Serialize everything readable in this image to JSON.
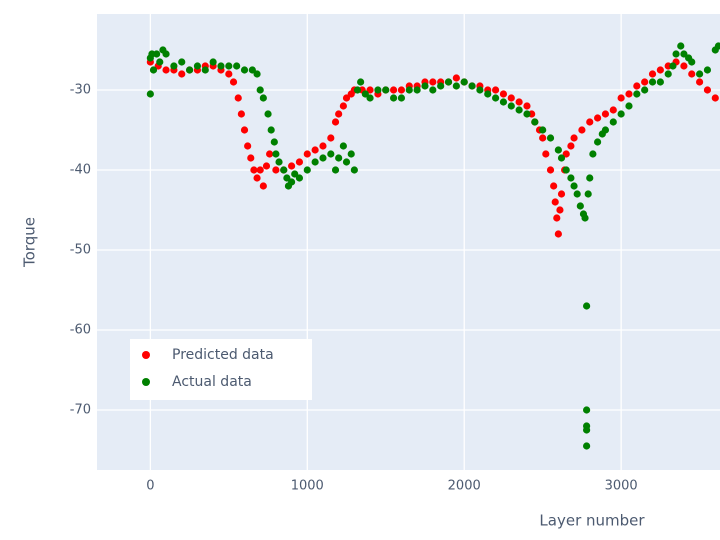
{
  "chart_data": {
    "type": "scatter",
    "xlabel": "Layer number",
    "ylabel": "Torque",
    "xlim": [
      -340,
      3630
    ],
    "ylim": [
      -77.5,
      -20.5
    ],
    "xticks": [
      0,
      1000,
      2000,
      3000
    ],
    "yticks": [
      -70,
      -60,
      -50,
      -40,
      -30
    ],
    "grid": true,
    "legend": "lower left",
    "series": [
      {
        "name": "Predicted data",
        "color": "#ff0000",
        "x": [
          0,
          50,
          100,
          150,
          200,
          250,
          300,
          350,
          400,
          450,
          500,
          530,
          560,
          580,
          600,
          620,
          640,
          660,
          680,
          700,
          720,
          740,
          760,
          800,
          850,
          900,
          950,
          1000,
          1050,
          1100,
          1150,
          1180,
          1200,
          1230,
          1250,
          1280,
          1300,
          1350,
          1400,
          1450,
          1500,
          1550,
          1600,
          1650,
          1700,
          1750,
          1800,
          1850,
          1900,
          1950,
          2000,
          2050,
          2100,
          2150,
          2200,
          2250,
          2300,
          2350,
          2400,
          2430,
          2450,
          2480,
          2500,
          2520,
          2550,
          2570,
          2580,
          2590,
          2600,
          2610,
          2620,
          2640,
          2650,
          2680,
          2700,
          2750,
          2800,
          2850,
          2900,
          2950,
          3000,
          3050,
          3100,
          3150,
          3200,
          3250,
          3300,
          3350,
          3400,
          3450,
          3500,
          3550,
          3600
        ],
        "values": [
          -26.5,
          -27,
          -27.5,
          -27.5,
          -28,
          -27.5,
          -27.5,
          -27,
          -27,
          -27.5,
          -28,
          -29,
          -31,
          -33,
          -35,
          -37,
          -38.5,
          -40,
          -41,
          -40,
          -42,
          -39.5,
          -38,
          -40,
          -40,
          -39.5,
          -39,
          -38,
          -37.5,
          -37,
          -36,
          -34,
          -33,
          -32,
          -31,
          -30.5,
          -30,
          -30,
          -30,
          -30.5,
          -30,
          -30,
          -30,
          -29.5,
          -29.5,
          -29,
          -29,
          -29,
          -29,
          -28.5,
          -29,
          -29.5,
          -29.5,
          -30,
          -30,
          -30.5,
          -31,
          -31.5,
          -32,
          -33,
          -34,
          -35,
          -36,
          -38,
          -40,
          -42,
          -44,
          -46,
          -48,
          -45,
          -43,
          -40,
          -38,
          -37,
          -36,
          -35,
          -34,
          -33.5,
          -33,
          -32.5,
          -31,
          -30.5,
          -29.5,
          -29,
          -28,
          -27.5,
          -27,
          -26.5,
          -27,
          -28,
          -29,
          -30,
          -31
        ]
      },
      {
        "name": "Actual data",
        "color": "#008000",
        "x": [
          0,
          0,
          10,
          20,
          40,
          60,
          80,
          100,
          150,
          200,
          250,
          300,
          350,
          400,
          450,
          500,
          550,
          600,
          650,
          680,
          700,
          720,
          750,
          770,
          790,
          800,
          820,
          850,
          870,
          880,
          900,
          920,
          950,
          1000,
          1050,
          1100,
          1150,
          1180,
          1200,
          1230,
          1250,
          1280,
          1300,
          1320,
          1340,
          1370,
          1400,
          1450,
          1500,
          1550,
          1600,
          1650,
          1700,
          1750,
          1800,
          1850,
          1900,
          1950,
          2000,
          2050,
          2100,
          2150,
          2200,
          2250,
          2300,
          2350,
          2400,
          2450,
          2500,
          2550,
          2600,
          2620,
          2650,
          2680,
          2700,
          2720,
          2740,
          2760,
          2770,
          2780,
          2780,
          2780,
          2780,
          2780,
          2790,
          2800,
          2820,
          2850,
          2880,
          2900,
          2950,
          3000,
          3050,
          3100,
          3150,
          3200,
          3250,
          3300,
          3330,
          3350,
          3380,
          3400,
          3430,
          3450,
          3500,
          3550,
          3600,
          3620
        ],
        "values": [
          -26,
          -30.5,
          -25.5,
          -27.5,
          -25.5,
          -26.5,
          -25,
          -25.5,
          -27,
          -26.5,
          -27.5,
          -27,
          -27.5,
          -26.5,
          -27,
          -27,
          -27,
          -27.5,
          -27.5,
          -28,
          -30,
          -31,
          -33,
          -35,
          -36.5,
          -38,
          -39,
          -40,
          -41,
          -42,
          -41.5,
          -40.5,
          -41,
          -40,
          -39,
          -38.5,
          -38,
          -40,
          -38.5,
          -37,
          -39,
          -38,
          -40,
          -30,
          -29,
          -30.5,
          -31,
          -30,
          -30,
          -31,
          -31,
          -30,
          -30,
          -29.5,
          -30,
          -29.5,
          -29,
          -29.5,
          -29,
          -29.5,
          -30,
          -30.5,
          -31,
          -31.5,
          -32,
          -32.5,
          -33,
          -34,
          -35,
          -36,
          -37.5,
          -38.5,
          -40,
          -41,
          -42,
          -43,
          -44.5,
          -45.5,
          -46,
          -57,
          -70,
          -72,
          -72.5,
          -74.5,
          -43,
          -41,
          -38,
          -36.5,
          -35.5,
          -35,
          -34,
          -33,
          -32,
          -30.5,
          -30,
          -29,
          -29,
          -28,
          -27,
          -25.5,
          -24.5,
          -25.5,
          -26,
          -26.5,
          -28,
          -27.5,
          -25,
          -24.5
        ]
      }
    ]
  }
}
